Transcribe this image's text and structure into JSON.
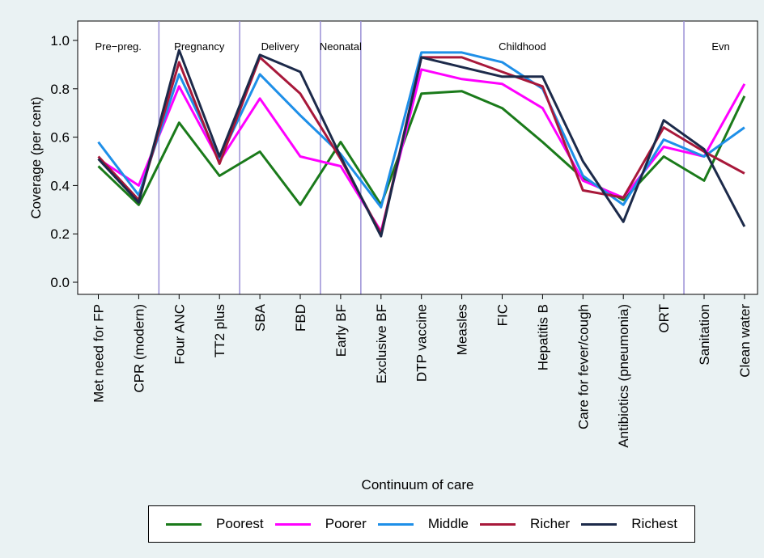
{
  "chart_data": {
    "type": "line",
    "title": "",
    "xlabel": "Continuum of care",
    "ylabel": "Coverage (per cent)",
    "ylim": [
      0,
      1
    ],
    "yticks": [
      "0.0",
      "0.2",
      "0.4",
      "0.6",
      "0.8",
      "1.0"
    ],
    "ytick_values": [
      0,
      0.2,
      0.4,
      0.6,
      0.8,
      1.0
    ],
    "categories": [
      "Met need for FP",
      "CPR (modern)",
      "Four ANC",
      "TT2 plus",
      "SBA",
      "FBD",
      "Early BF",
      "Exclusive BF",
      "DTP vaccine",
      "Measles",
      "FIC",
      "Hepatitis B",
      "Care for fever/cough",
      "Antibiotics (pneumonia)",
      "ORT",
      "Sanitation",
      "Clean water"
    ],
    "phases": [
      {
        "label": "Pre−preg.",
        "start": 0,
        "end": 1
      },
      {
        "label": "Pregnancy",
        "start": 2,
        "end": 3
      },
      {
        "label": "Delivery",
        "start": 4,
        "end": 5
      },
      {
        "label": "Neonatal",
        "start": 6,
        "end": 6
      },
      {
        "label": "Childhood",
        "start": 7,
        "end": 14
      },
      {
        "label": "Evn",
        "start": 15,
        "end": 16
      }
    ],
    "series": [
      {
        "name": "Poorest",
        "color": "#1a7a1a",
        "values": [
          0.48,
          0.32,
          0.66,
          0.44,
          0.54,
          0.32,
          0.58,
          0.32,
          0.78,
          0.79,
          0.72,
          0.58,
          0.43,
          0.34,
          0.52,
          0.42,
          0.77
        ]
      },
      {
        "name": "Poorer",
        "color": "#ff00ff",
        "values": [
          0.51,
          0.4,
          0.81,
          0.5,
          0.76,
          0.52,
          0.48,
          0.21,
          0.88,
          0.84,
          0.82,
          0.72,
          0.42,
          0.35,
          0.56,
          0.52,
          0.82
        ]
      },
      {
        "name": "Middle",
        "color": "#1e8fe8",
        "values": [
          0.58,
          0.36,
          0.86,
          0.51,
          0.86,
          0.69,
          0.53,
          0.31,
          0.95,
          0.95,
          0.91,
          0.8,
          0.44,
          0.32,
          0.59,
          0.52,
          0.64
        ]
      },
      {
        "name": "Richer",
        "color": "#a8183a",
        "values": [
          0.52,
          0.34,
          0.91,
          0.49,
          0.93,
          0.78,
          0.51,
          0.2,
          0.93,
          0.93,
          0.87,
          0.81,
          0.38,
          0.35,
          0.64,
          0.54,
          0.45
        ]
      },
      {
        "name": "Richest",
        "color": "#1c2a4a",
        "values": [
          0.51,
          0.33,
          0.96,
          0.52,
          0.94,
          0.87,
          0.52,
          0.19,
          0.93,
          0.89,
          0.85,
          0.85,
          0.5,
          0.25,
          0.67,
          0.55,
          0.23
        ]
      }
    ],
    "legend_position": "bottom",
    "grid": false
  }
}
